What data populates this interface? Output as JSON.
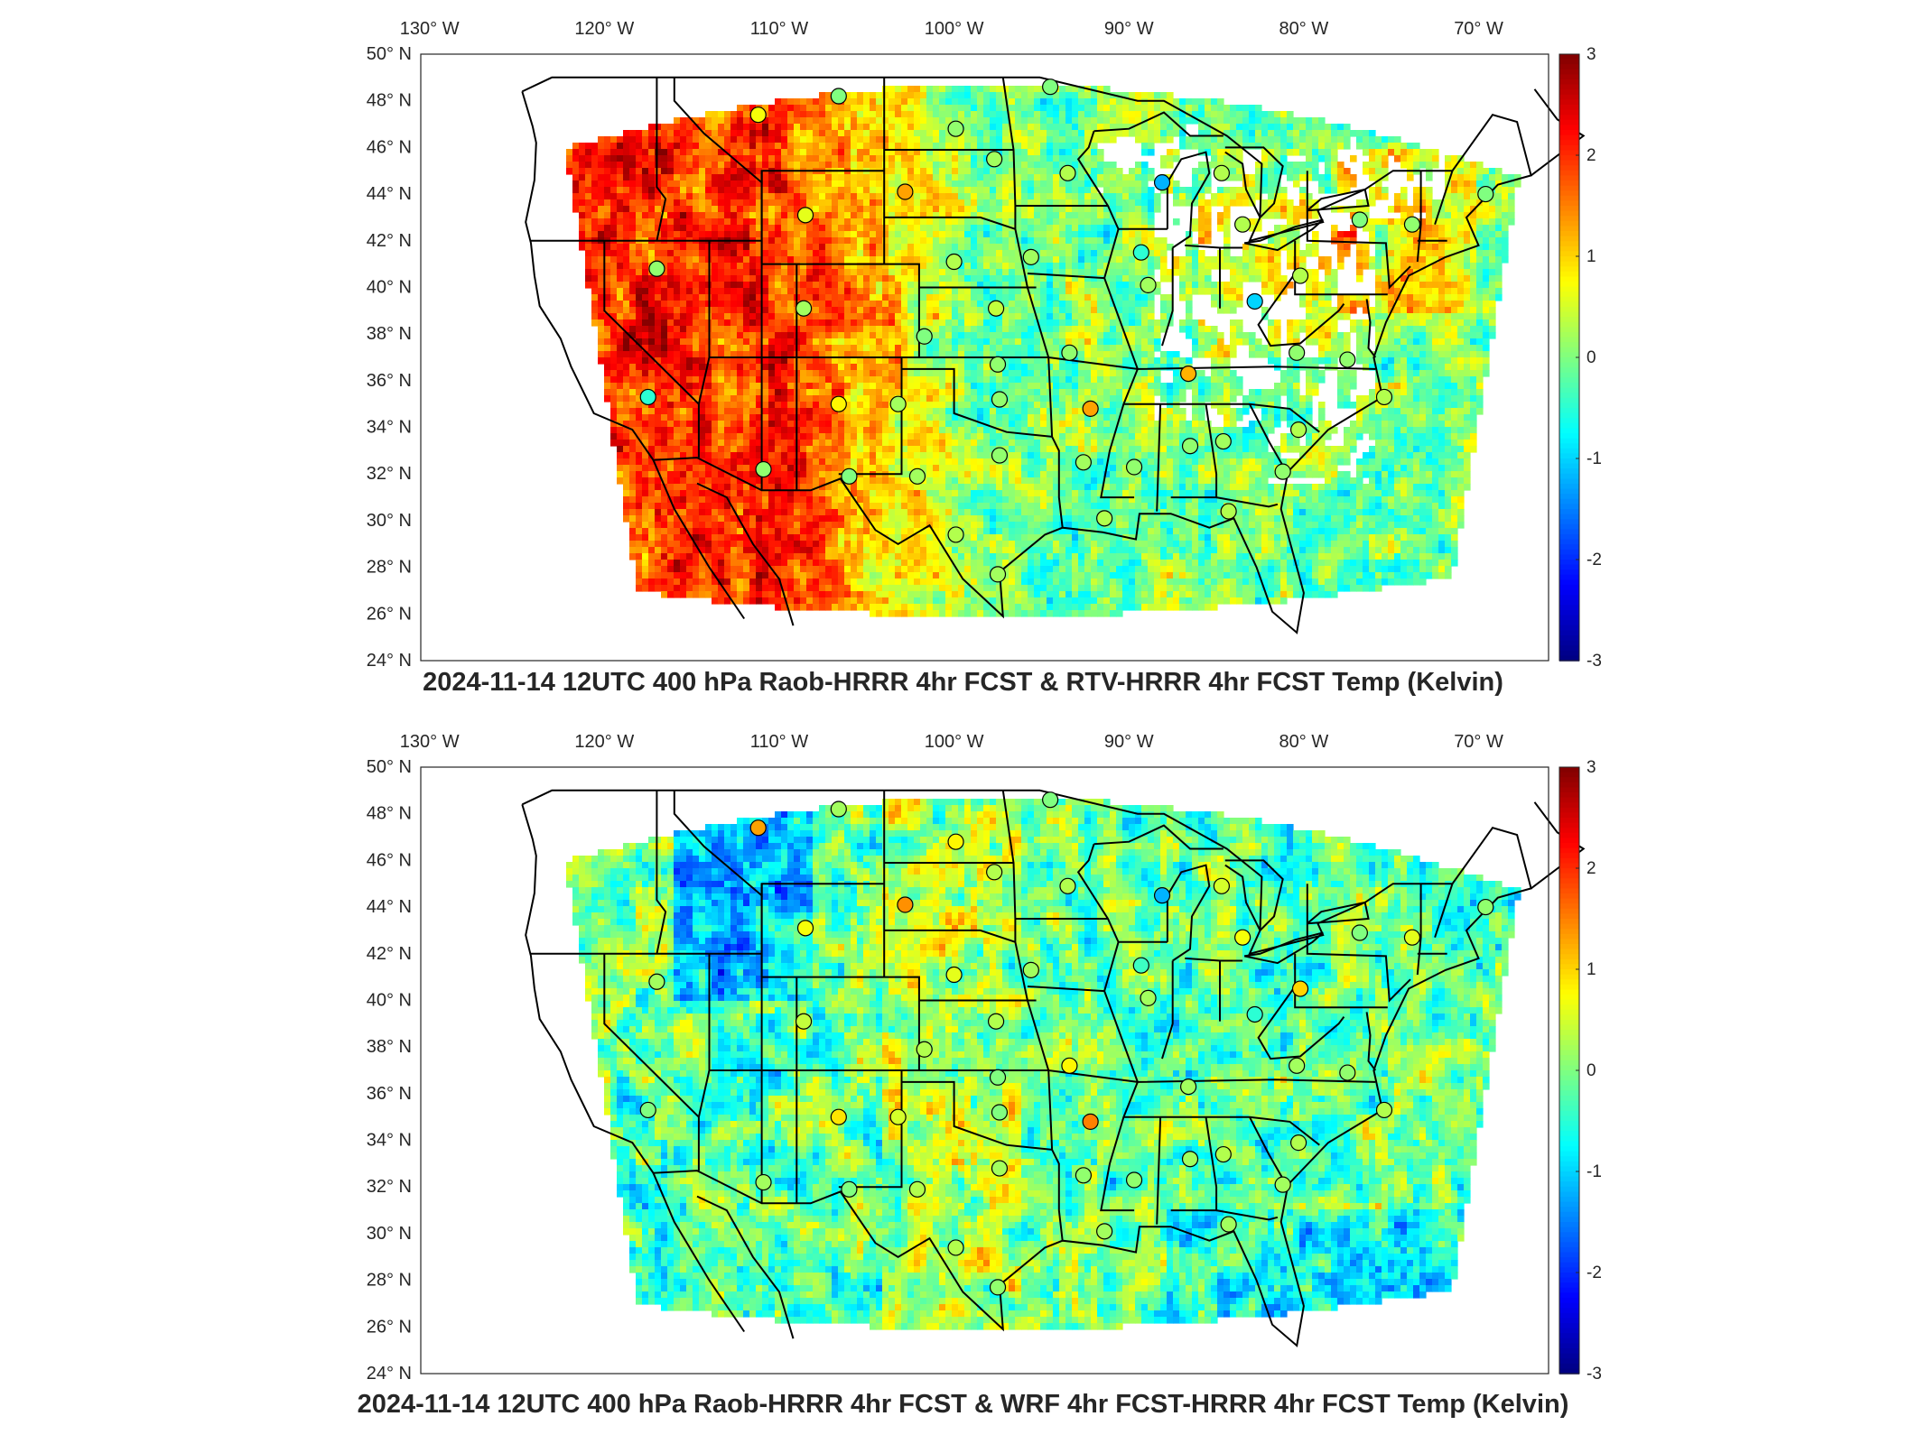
{
  "maps": [
    {
      "id": "top",
      "title": "2024-11-14 12UTC 400 hPa Raob-HRRR 4hr FCST & RTV-HRRR 4hr FCST Temp (Kelvin)",
      "field": "rtv",
      "colorbar": {
        "ticks": [
          "3",
          "2",
          "1",
          "0",
          "-1",
          "-2",
          "-3"
        ],
        "range": [
          -3,
          3
        ],
        "colormap": "jet"
      }
    },
    {
      "id": "bottom",
      "title": "2024-11-14 12UTC 400 hPa Raob-HRRR 4hr FCST & WRF 4hr FCST-HRRR 4hr FCST Temp (Kelvin)",
      "field": "wrf",
      "colorbar": {
        "ticks": [
          "3",
          "2",
          "1",
          "0",
          "-1",
          "-2",
          "-3"
        ],
        "range": [
          -3,
          3
        ],
        "colormap": "jet"
      }
    }
  ],
  "lon_labels": [
    "130",
    "120",
    "110",
    "100",
    "90",
    "80",
    "70"
  ],
  "lon_suffix": "W",
  "lat_labels": [
    "50",
    "48",
    "46",
    "44",
    "42",
    "40",
    "38",
    "36",
    "34",
    "32",
    "30",
    "28",
    "26",
    "24"
  ],
  "lat_suffix": "N",
  "degree_symbol": "°",
  "colors": {
    "outline": "#000000",
    "frame": "#262626",
    "missing": "#ffffff"
  }
}
